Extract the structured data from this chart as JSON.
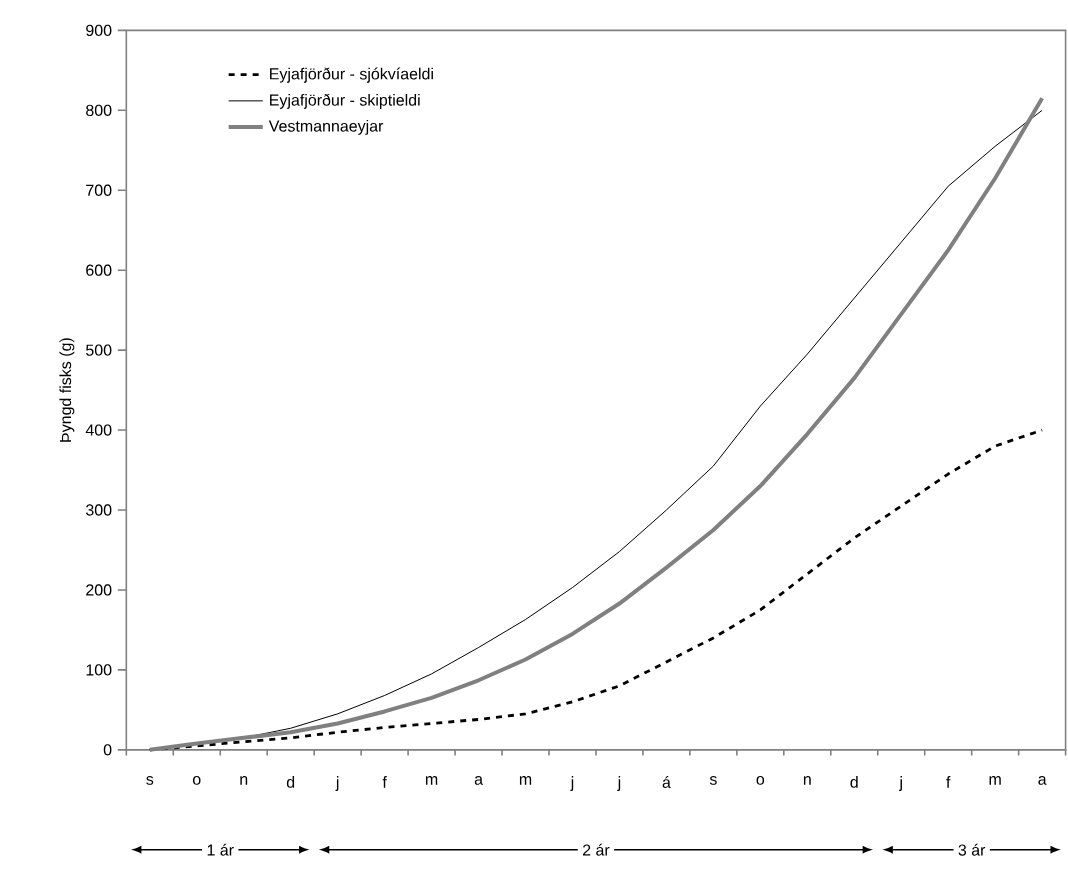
{
  "chart_data": {
    "type": "line",
    "ylabel": "Þyngd fisks (g)",
    "categories": [
      "s",
      "o",
      "n",
      "d",
      "j",
      "f",
      "m",
      "a",
      "m",
      "j",
      "j",
      "á",
      "s",
      "o",
      "n",
      "d",
      "j",
      "f",
      "m",
      "a"
    ],
    "series": [
      {
        "name": "Eyjafjörður - sjókvíaeldi",
        "color": "#000000",
        "line_style": "dashed",
        "values": [
          0,
          5,
          10,
          15,
          22,
          28,
          33,
          38,
          45,
          60,
          80,
          110,
          140,
          175,
          220,
          265,
          305,
          345,
          380,
          400
        ]
      },
      {
        "name": "Eyjafjörður - skiptieldi",
        "color": "#000000",
        "line_style": "solid",
        "values": [
          0,
          8,
          15,
          27,
          45,
          68,
          95,
          128,
          163,
          203,
          248,
          300,
          355,
          430,
          495,
          565,
          635,
          705,
          755,
          800
        ]
      },
      {
        "name": "Vestmannaeyjar",
        "color": "#808080",
        "line_style": "solid",
        "values": [
          0,
          8,
          15,
          22,
          33,
          48,
          65,
          87,
          113,
          145,
          183,
          228,
          275,
          330,
          395,
          465,
          545,
          625,
          715,
          815
        ]
      }
    ],
    "ylim": [
      0,
      900
    ],
    "yticks": [
      0,
      100,
      200,
      300,
      400,
      500,
      600,
      700,
      800,
      900
    ],
    "legend": "top left",
    "marker": "none",
    "annotations": [
      "1 ár",
      "2 ár",
      "3 ár"
    ]
  }
}
